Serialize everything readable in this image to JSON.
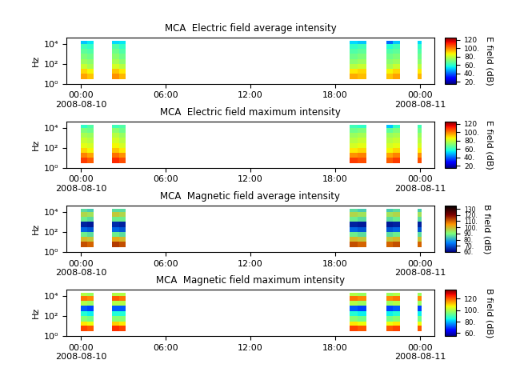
{
  "chart_data": [
    {
      "type": "heatmap",
      "title": "MCA  Electric field average intensity",
      "y_label": "Hz",
      "log": "y",
      "xlim": [
        -1,
        25
      ],
      "xticks": [
        {
          "value": 0,
          "label": "00:00\n2008-08-10"
        },
        {
          "value": 6,
          "label": "06:00"
        },
        {
          "value": 12,
          "label": "12:00"
        },
        {
          "value": 18,
          "label": "18:00"
        },
        {
          "value": 24,
          "label": "00:00\n2008-08-11"
        }
      ],
      "ylim": [
        1,
        40000
      ],
      "yticks": [
        {
          "value": 1,
          "label": "10⁰"
        },
        {
          "value": 100,
          "label": "10²"
        },
        {
          "value": 10000,
          "label": "10⁴"
        }
      ],
      "x_edges": [
        0,
        0.45,
        0.9,
        2.2,
        2.7,
        3.2,
        19.0,
        19.6,
        20.2,
        21.6,
        22.1,
        22.6,
        23.8,
        24.1
      ],
      "y_edges": [
        3,
        10,
        30,
        100,
        300,
        1000,
        3000,
        10000,
        20000
      ],
      "cells": [
        [
          96,
          92,
          null,
          98,
          94,
          null,
          95,
          93,
          null,
          92,
          96,
          null,
          94
        ],
        [
          90,
          86,
          null,
          92,
          88,
          null,
          88,
          90,
          null,
          86,
          90,
          null,
          88
        ],
        [
          80,
          76,
          null,
          82,
          78,
          null,
          78,
          80,
          null,
          76,
          80,
          null,
          78
        ],
        [
          74,
          72,
          null,
          76,
          72,
          null,
          72,
          74,
          null,
          72,
          74,
          null,
          72
        ],
        [
          70,
          68,
          null,
          72,
          68,
          null,
          68,
          70,
          null,
          68,
          70,
          null,
          68
        ],
        [
          66,
          64,
          null,
          68,
          64,
          null,
          64,
          66,
          null,
          64,
          66,
          null,
          64
        ],
        [
          62,
          60,
          null,
          64,
          60,
          null,
          60,
          62,
          null,
          58,
          62,
          null,
          60
        ],
        [
          50,
          54,
          null,
          52,
          54,
          null,
          52,
          50,
          null,
          40,
          50,
          null,
          52
        ]
      ],
      "colorbar_label": "E field (dB)",
      "colorbar_range": [
        15,
        125
      ],
      "colorbar_ticks": [
        {
          "value": 20,
          "label": "20."
        },
        {
          "value": 40,
          "label": "40."
        },
        {
          "value": 60,
          "label": "60."
        },
        {
          "value": 80,
          "label": "80."
        },
        {
          "value": 100,
          "label": "100."
        },
        {
          "value": 120,
          "label": "120"
        }
      ]
    },
    {
      "type": "heatmap",
      "title": "MCA  Electric field maximum intensity",
      "y_label": "Hz",
      "log": "y",
      "xlim": [
        -1,
        25
      ],
      "xticks": [
        {
          "value": 0,
          "label": "00:00\n2008-08-10"
        },
        {
          "value": 6,
          "label": "06:00"
        },
        {
          "value": 12,
          "label": "12:00"
        },
        {
          "value": 18,
          "label": "18:00"
        },
        {
          "value": 24,
          "label": "00:00\n2008-08-11"
        }
      ],
      "ylim": [
        1,
        40000
      ],
      "yticks": [
        {
          "value": 1,
          "label": "10⁰"
        },
        {
          "value": 100,
          "label": "10²"
        },
        {
          "value": 10000,
          "label": "10⁴"
        }
      ],
      "x_edges": [
        0,
        0.45,
        0.9,
        2.2,
        2.7,
        3.2,
        19.0,
        19.6,
        20.2,
        21.6,
        22.1,
        22.6,
        23.8,
        24.1
      ],
      "y_edges": [
        3,
        10,
        30,
        100,
        300,
        1000,
        3000,
        10000,
        20000
      ],
      "cells": [
        [
          108,
          104,
          null,
          110,
          106,
          null,
          108,
          106,
          null,
          104,
          108,
          null,
          106
        ],
        [
          100,
          96,
          null,
          102,
          98,
          null,
          98,
          100,
          null,
          96,
          100,
          null,
          98
        ],
        [
          90,
          86,
          null,
          92,
          88,
          null,
          88,
          90,
          null,
          86,
          90,
          null,
          88
        ],
        [
          84,
          82,
          null,
          86,
          82,
          null,
          82,
          84,
          null,
          82,
          84,
          null,
          82
        ],
        [
          80,
          78,
          null,
          82,
          78,
          null,
          78,
          80,
          null,
          78,
          80,
          null,
          78
        ],
        [
          76,
          74,
          null,
          78,
          74,
          null,
          74,
          76,
          null,
          74,
          76,
          null,
          74
        ],
        [
          70,
          68,
          null,
          72,
          68,
          null,
          68,
          70,
          null,
          66,
          70,
          null,
          68
        ],
        [
          60,
          64,
          null,
          62,
          64,
          null,
          62,
          60,
          null,
          50,
          60,
          null,
          62
        ]
      ],
      "colorbar_label": "E field (dB)",
      "colorbar_range": [
        15,
        125
      ],
      "colorbar_ticks": [
        {
          "value": 20,
          "label": "20."
        },
        {
          "value": 40,
          "label": "40."
        },
        {
          "value": 60,
          "label": "60."
        },
        {
          "value": 80,
          "label": "80."
        },
        {
          "value": 100,
          "label": "100."
        },
        {
          "value": 120,
          "label": "120"
        }
      ]
    },
    {
      "type": "heatmap",
      "title": "MCA  Magnetic field average intensity",
      "y_label": "Hz",
      "log": "y",
      "xlim": [
        -1,
        25
      ],
      "xticks": [
        {
          "value": 0,
          "label": "00:00\n2008-08-10"
        },
        {
          "value": 6,
          "label": "06:00"
        },
        {
          "value": 12,
          "label": "12:00"
        },
        {
          "value": 18,
          "label": "18:00"
        },
        {
          "value": 24,
          "label": "00:00\n2008-08-11"
        }
      ],
      "ylim": [
        1,
        40000
      ],
      "yticks": [
        {
          "value": 1,
          "label": "10⁰"
        },
        {
          "value": 100,
          "label": "10²"
        },
        {
          "value": 10000,
          "label": "10⁴"
        }
      ],
      "x_edges": [
        0,
        0.45,
        0.9,
        2.2,
        2.7,
        3.2,
        19.0,
        19.6,
        20.2,
        21.6,
        22.1,
        22.6,
        23.8,
        24.1
      ],
      "y_edges": [
        3,
        10,
        30,
        100,
        300,
        1000,
        3000,
        10000,
        20000
      ],
      "cells": [
        [
          112,
          110,
          null,
          114,
          112,
          null,
          112,
          110,
          null,
          110,
          112,
          null,
          110
        ],
        [
          100,
          98,
          null,
          102,
          100,
          null,
          100,
          98,
          null,
          98,
          100,
          null,
          98
        ],
        [
          88,
          86,
          null,
          88,
          86,
          null,
          88,
          86,
          null,
          86,
          88,
          null,
          86
        ],
        [
          72,
          70,
          null,
          72,
          70,
          null,
          72,
          70,
          null,
          70,
          72,
          null,
          70
        ],
        [
          64,
          63,
          null,
          65,
          64,
          null,
          64,
          63,
          null,
          63,
          64,
          null,
          64
        ],
        [
          88,
          86,
          null,
          88,
          88,
          null,
          88,
          86,
          null,
          86,
          88,
          null,
          86
        ],
        [
          96,
          94,
          null,
          98,
          96,
          null,
          96,
          94,
          null,
          94,
          96,
          null,
          94
        ],
        [
          86,
          84,
          null,
          86,
          86,
          null,
          86,
          84,
          null,
          84,
          86,
          null,
          84
        ]
      ],
      "colorbar_label": "B field (dB)",
      "colorbar_range": [
        60,
        135
      ],
      "colorbar_ticks": [
        {
          "value": 60,
          "label": "60."
        },
        {
          "value": 70,
          "label": "70."
        },
        {
          "value": 80,
          "label": "80."
        },
        {
          "value": 90,
          "label": "90."
        },
        {
          "value": 100,
          "label": "100."
        },
        {
          "value": 110,
          "label": "110."
        },
        {
          "value": 120,
          "label": "120."
        },
        {
          "value": 130,
          "label": "130"
        }
      ]
    },
    {
      "type": "heatmap",
      "title": "MCA  Magnetic field maximum intensity",
      "y_label": "Hz",
      "log": "y",
      "xlim": [
        -1,
        25
      ],
      "xticks": [
        {
          "value": 0,
          "label": "00:00\n2008-08-10"
        },
        {
          "value": 6,
          "label": "06:00"
        },
        {
          "value": 12,
          "label": "12:00"
        },
        {
          "value": 18,
          "label": "18:00"
        },
        {
          "value": 24,
          "label": "00:00\n2008-08-11"
        }
      ],
      "ylim": [
        1,
        40000
      ],
      "yticks": [
        {
          "value": 1,
          "label": "10⁰"
        },
        {
          "value": 100,
          "label": "10²"
        },
        {
          "value": 10000,
          "label": "10⁴"
        }
      ],
      "x_edges": [
        0,
        0.45,
        0.9,
        2.2,
        2.7,
        3.2,
        19.0,
        19.6,
        20.2,
        21.6,
        22.1,
        22.6,
        23.8,
        24.1
      ],
      "y_edges": [
        3,
        10,
        30,
        100,
        300,
        1000,
        3000,
        10000,
        20000
      ],
      "cells": [
        [
          122,
          120,
          null,
          124,
          122,
          null,
          122,
          120,
          null,
          120,
          122,
          null,
          120
        ],
        [
          108,
          106,
          null,
          110,
          108,
          null,
          108,
          106,
          null,
          106,
          108,
          null,
          106
        ],
        [
          96,
          94,
          null,
          96,
          96,
          null,
          96,
          94,
          null,
          94,
          96,
          null,
          94
        ],
        [
          86,
          84,
          null,
          86,
          86,
          null,
          86,
          84,
          null,
          84,
          86,
          null,
          84
        ],
        [
          72,
          70,
          null,
          72,
          72,
          null,
          72,
          70,
          null,
          70,
          72,
          null,
          70
        ],
        [
          100,
          98,
          null,
          100,
          100,
          null,
          100,
          98,
          null,
          98,
          100,
          null,
          98
        ],
        [
          118,
          116,
          null,
          120,
          118,
          null,
          118,
          116,
          null,
          116,
          118,
          null,
          116
        ],
        [
          100,
          98,
          null,
          100,
          100,
          null,
          100,
          98,
          null,
          98,
          100,
          null,
          98
        ]
      ],
      "colorbar_label": "B field (dB)",
      "colorbar_range": [
        55,
        135
      ],
      "colorbar_ticks": [
        {
          "value": 60,
          "label": "60."
        },
        {
          "value": 80,
          "label": "80."
        },
        {
          "value": 100,
          "label": "100."
        },
        {
          "value": 120,
          "label": "120"
        }
      ]
    }
  ]
}
